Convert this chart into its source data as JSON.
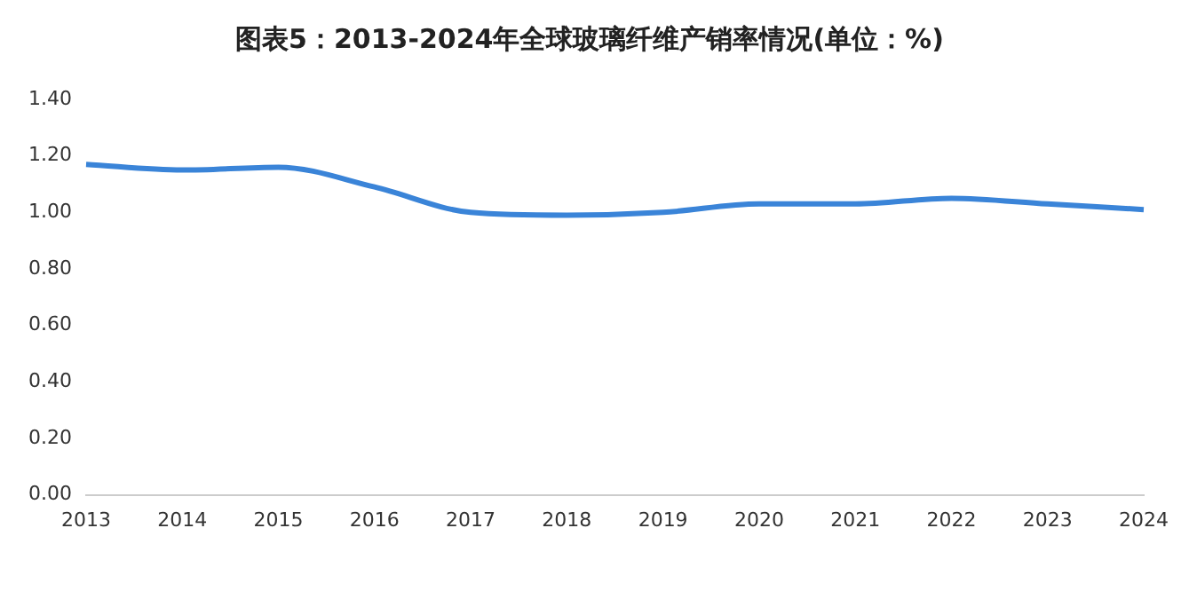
{
  "chart_data": {
    "type": "line",
    "title": "图表5：2013-2024年全球玻璃纤维产销率情况(单位：%)",
    "categories": [
      "2013",
      "2014",
      "2015",
      "2016",
      "2017",
      "2018",
      "2019",
      "2020",
      "2021",
      "2022",
      "2023",
      "2024"
    ],
    "series": [
      {
        "color": "#3a84d8",
        "values": [
          1.17,
          1.15,
          1.16,
          1.09,
          1.0,
          0.99,
          1.0,
          1.03,
          1.03,
          1.05,
          1.03,
          1.01
        ]
      }
    ],
    "ylim": [
      0,
      1.4
    ],
    "yticks": [
      {
        "value": 0,
        "label": "0.00"
      },
      {
        "value": 0.2,
        "label": "0.20"
      },
      {
        "value": 0.4,
        "label": "0.40"
      },
      {
        "value": 0.6,
        "label": "0.60"
      },
      {
        "value": 0.8,
        "label": "0.80"
      },
      {
        "value": 1.0,
        "label": "1.00"
      },
      {
        "value": 1.2,
        "label": "1.20"
      },
      {
        "value": 1.4,
        "label": "1.40"
      }
    ],
    "grid": false,
    "legend": false,
    "marker": "none",
    "line_style": "solid"
  }
}
